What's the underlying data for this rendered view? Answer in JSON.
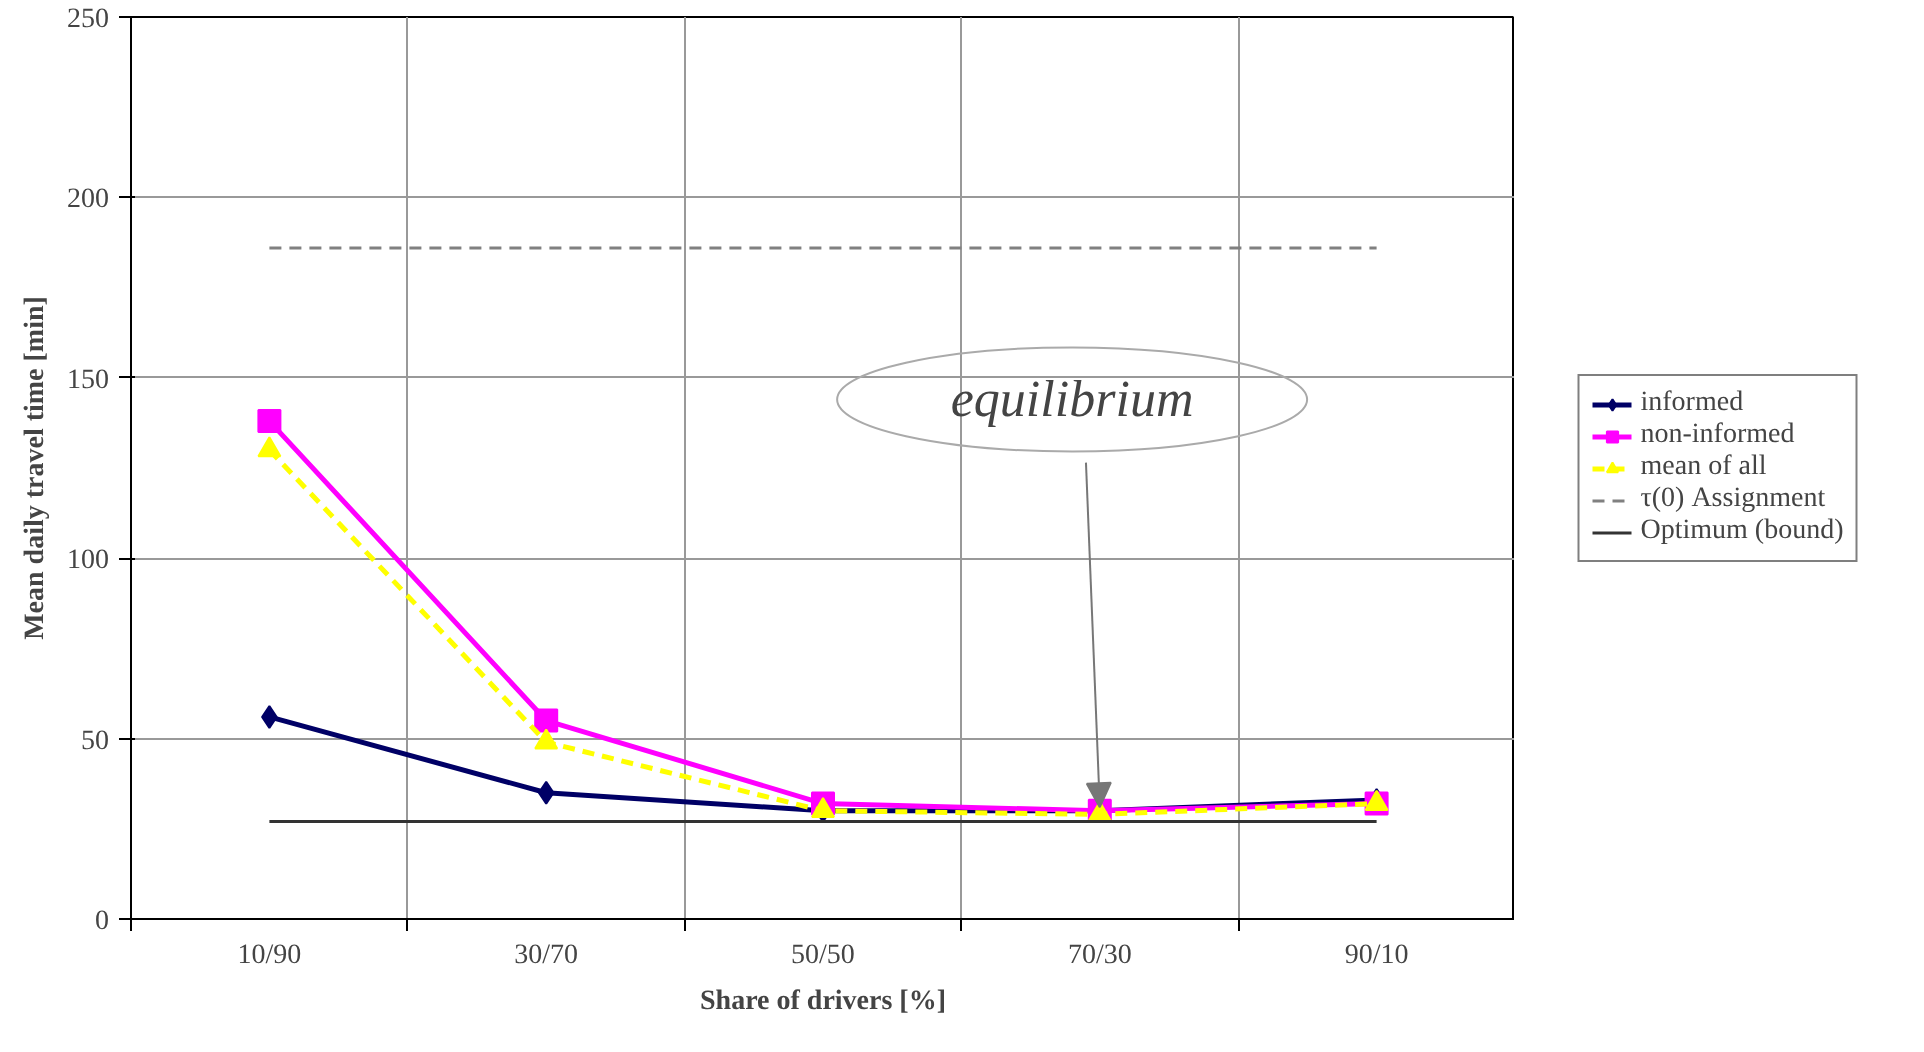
{
  "chart_data": {
    "type": "line",
    "xlabel": "Share of drivers [%]",
    "ylabel": "Mean daily travel time [min]",
    "categories": [
      "10/90",
      "30/70",
      "50/50",
      "70/30",
      "90/10"
    ],
    "series": [
      {
        "name": "informed",
        "color": "#000066",
        "values": [
          56,
          35,
          30,
          30,
          33
        ],
        "marker": "diamond",
        "line_style": "solid"
      },
      {
        "name": "non-informed",
        "color": "#ff00ff",
        "values": [
          138,
          55,
          32,
          30,
          32
        ],
        "marker": "square",
        "line_style": "solid"
      },
      {
        "name": "mean of all",
        "color": "#ffff00",
        "values": [
          130,
          49,
          30,
          29,
          32
        ],
        "marker": "triangle",
        "line_style": "dashed"
      },
      {
        "name": "τ(0) Assignment",
        "color": "#808080",
        "values": [
          186,
          186,
          186,
          186,
          186
        ],
        "marker": "none",
        "line_style": "dashed"
      },
      {
        "name": "Optimum (bound)",
        "color": "#333333",
        "values": [
          27,
          27,
          27,
          27,
          27
        ],
        "marker": "none",
        "line_style": "solid"
      }
    ],
    "ylim": [
      0,
      250
    ],
    "yticks": [
      0,
      50,
      100,
      150,
      200,
      250
    ],
    "grid": true,
    "legend": "right",
    "annotations": [
      {
        "text": "equilibrium",
        "x": "70/30",
        "y": 29
      }
    ]
  }
}
